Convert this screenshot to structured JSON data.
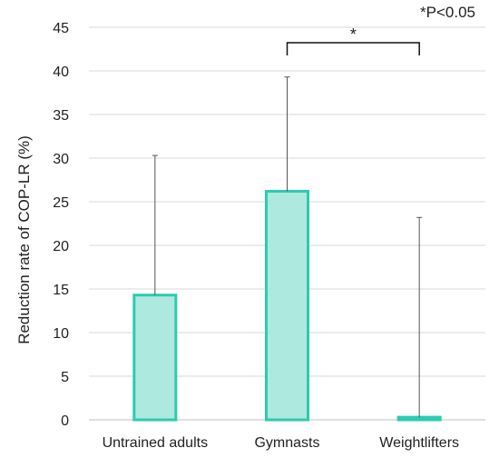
{
  "chart_data": {
    "type": "bar",
    "categories": [
      "Untrained adults",
      "Gymnasts",
      "Weightlifters"
    ],
    "series": [
      {
        "values": [
          14.3,
          26.2,
          0.3
        ],
        "error_upper": [
          16.0,
          13.1,
          22.9
        ]
      }
    ],
    "ylabel": "Reduction rate of COP-LR (%)",
    "xlabel": "",
    "ylim": [
      0,
      45
    ],
    "yticks": [
      0,
      5,
      10,
      15,
      20,
      25,
      30,
      35,
      40,
      45
    ],
    "grid": true,
    "significance": {
      "from": "Gymnasts",
      "to": "Weightlifters",
      "marker": "*"
    },
    "note": "*P<0.05",
    "colors": {
      "bar_fill": "#aee9df",
      "bar_stroke": "#2ccbb0",
      "error": "#555555",
      "grid": "#d9d9d9"
    }
  }
}
